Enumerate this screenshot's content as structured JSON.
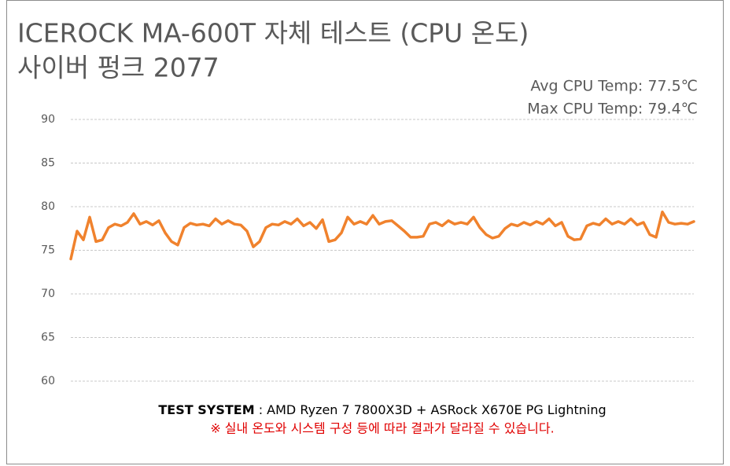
{
  "chart_data": {
    "type": "line",
    "title": "ICEROCK MA-600T  자체 테스트 (CPU 온도)",
    "subtitle": "사이버 펑크 2077",
    "annotations": [
      "Avg CPU Temp: 77.5℃",
      "Max CPU Temp: 79.4℃"
    ],
    "footer": {
      "label": "TEST SYSTEM",
      "text": ": AMD Ryzen 7 7800X3D + ASRock X670E PG Lightning",
      "note": "※ 실내 온도와 시스템 구성 등에 따라 결과가 달라질 수 있습니다."
    },
    "color": "#f0822d",
    "ylim": [
      60,
      90
    ],
    "yticks": [
      60,
      65,
      70,
      75,
      80,
      85,
      90
    ],
    "grid": true,
    "values": [
      74.0,
      77.2,
      76.2,
      78.8,
      76.0,
      76.2,
      77.6,
      78.0,
      77.8,
      78.2,
      79.2,
      78.0,
      78.3,
      77.9,
      78.4,
      77.0,
      76.0,
      75.6,
      77.6,
      78.1,
      77.9,
      78.0,
      77.8,
      78.6,
      78.0,
      78.4,
      78.0,
      77.9,
      77.2,
      75.4,
      76.0,
      77.6,
      78.0,
      77.9,
      78.3,
      78.0,
      78.6,
      77.8,
      78.2,
      77.5,
      78.5,
      76.0,
      76.2,
      77.0,
      78.8,
      78.0,
      78.3,
      78.0,
      79.0,
      78.0,
      78.3,
      78.4,
      77.8,
      77.2,
      76.5,
      76.5,
      76.6,
      78.0,
      78.2,
      77.8,
      78.4,
      78.0,
      78.2,
      78.0,
      78.8,
      77.6,
      76.8,
      76.4,
      76.6,
      77.5,
      78.0,
      77.8,
      78.2,
      77.9,
      78.3,
      78.0,
      78.6,
      77.8,
      78.2,
      76.6,
      76.2,
      76.3,
      77.8,
      78.1,
      77.9,
      78.6,
      78.0,
      78.3,
      78.0,
      78.6,
      77.9,
      78.2,
      76.8,
      76.5,
      79.4,
      78.2,
      78.0,
      78.1,
      78.0,
      78.3
    ]
  }
}
